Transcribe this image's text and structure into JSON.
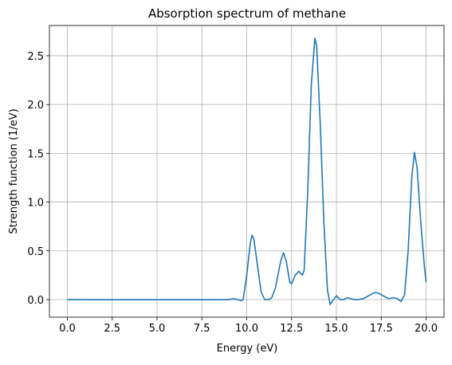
{
  "chart_data": {
    "type": "line",
    "title": "Absorption spectrum of methane",
    "x_label": "Energy (eV)",
    "y_label": "Strength function (1/eV)",
    "x": [
      0,
      2,
      4,
      6,
      8,
      9.0,
      9.3,
      9.5,
      9.7,
      9.8,
      10.0,
      10.2,
      10.3,
      10.4,
      10.6,
      10.8,
      11.0,
      11.2,
      11.4,
      11.6,
      11.9,
      12.05,
      12.2,
      12.4,
      12.5,
      12.7,
      12.9,
      13.1,
      13.2,
      13.4,
      13.6,
      13.8,
      13.9,
      14.1,
      14.3,
      14.5,
      14.65,
      14.8,
      15.0,
      15.2,
      15.4,
      15.6,
      15.8,
      16.0,
      16.2,
      16.5,
      16.8,
      17.1,
      17.3,
      17.6,
      17.9,
      18.2,
      18.4,
      18.6,
      18.8,
      19.0,
      19.2,
      19.35,
      19.5,
      19.7,
      19.9,
      20.0
    ],
    "series": [
      {
        "name": "Strength function",
        "color": "#1f77b4",
        "values": [
          0,
          0,
          0,
          0,
          0,
          0,
          0.01,
          0,
          -0.01,
          0,
          0.25,
          0.58,
          0.66,
          0.62,
          0.35,
          0.08,
          0,
          0,
          0.02,
          0.12,
          0.4,
          0.48,
          0.4,
          0.18,
          0.16,
          0.25,
          0.29,
          0.25,
          0.3,
          1.1,
          2.2,
          2.68,
          2.6,
          1.8,
          0.8,
          0.1,
          -0.05,
          -0.01,
          0.04,
          0,
          0,
          0.02,
          0.01,
          0,
          0,
          0.01,
          0.04,
          0.07,
          0.07,
          0.04,
          0.01,
          0.02,
          0.01,
          -0.02,
          0.05,
          0.5,
          1.25,
          1.51,
          1.35,
          0.8,
          0.35,
          0.18
        ]
      }
    ],
    "xlim": [
      -1,
      21
    ],
    "ylim": [
      -0.18,
      2.81
    ],
    "xticks": [
      {
        "value": 0,
        "label": "0.0"
      },
      {
        "value": 2.5,
        "label": "2.5"
      },
      {
        "value": 5,
        "label": "5.0"
      },
      {
        "value": 7.5,
        "label": "7.5"
      },
      {
        "value": 10,
        "label": "10.0"
      },
      {
        "value": 12.5,
        "label": "12.5"
      },
      {
        "value": 15,
        "label": "15.0"
      },
      {
        "value": 17.5,
        "label": "17.5"
      },
      {
        "value": 20,
        "label": "20.0"
      }
    ],
    "yticks": [
      {
        "value": 0,
        "label": "0.0"
      },
      {
        "value": 0.5,
        "label": "0.5"
      },
      {
        "value": 1,
        "label": "1.0"
      },
      {
        "value": 1.5,
        "label": "1.5"
      },
      {
        "value": 2,
        "label": "2.0"
      },
      {
        "value": 2.5,
        "label": "2.5"
      }
    ],
    "grid": true
  }
}
